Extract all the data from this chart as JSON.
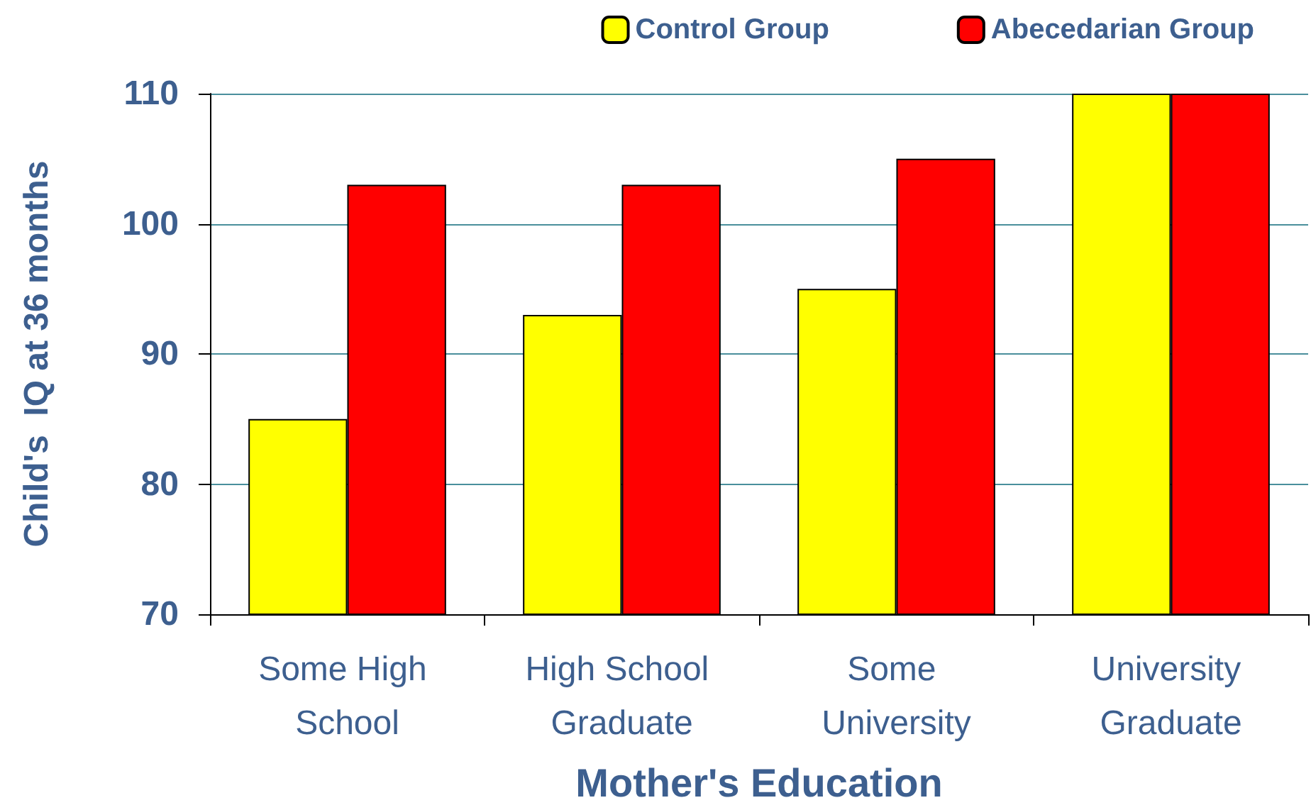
{
  "chart_data": {
    "type": "bar",
    "xlabel": "Mother's Education",
    "ylabel": "Child's  IQ at 36 months",
    "categories": [
      "Some High School",
      "High School Graduate",
      "Some University",
      "University Graduate"
    ],
    "series": [
      {
        "name": "Control Group",
        "color": "#ffff00",
        "values": [
          85,
          93,
          95,
          110
        ]
      },
      {
        "name": "Abecedarian Group",
        "color": "#ff0000",
        "values": [
          103,
          103,
          105,
          110
        ]
      }
    ],
    "ylim": [
      70,
      110
    ],
    "yticks": [
      70,
      80,
      90,
      100,
      110
    ],
    "grid": "y",
    "legend": "top right"
  }
}
